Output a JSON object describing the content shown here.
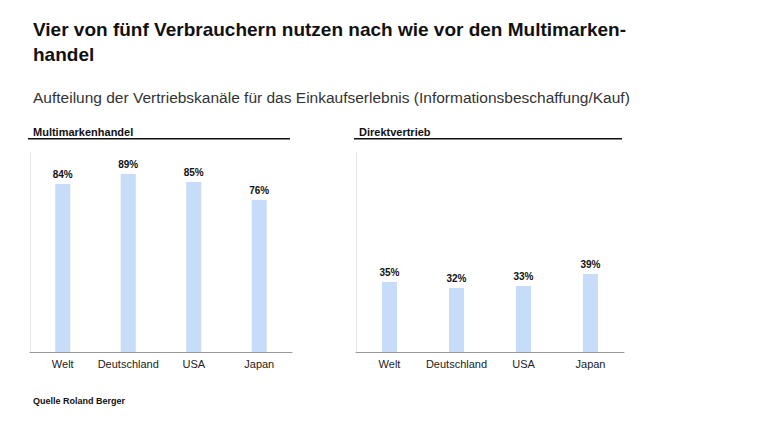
{
  "title": "Vier von fünf Verbrauchern nutzen nach wie vor den Multimarken-\nhandel",
  "subtitle": "Aufteilung der Vertriebskanäle für das Einkaufserlebnis (Informationsbeschaffung/Kauf)",
  "source_label": "Quelle",
  "source": "Roland Berger",
  "chart_data": [
    {
      "type": "bar",
      "title": "Multimarkenhandel",
      "categories": [
        "Welt",
        "Deutschland",
        "USA",
        "Japan"
      ],
      "values": [
        84,
        89,
        85,
        76
      ],
      "value_labels": [
        "84%",
        "89%",
        "85%",
        "76%"
      ],
      "color": "#c6dcf8",
      "ylim": [
        0,
        100
      ],
      "grid": false,
      "data_labels": true,
      "tick_labels": "x"
    },
    {
      "type": "bar",
      "title": "Direktvertrieb",
      "categories": [
        "Welt",
        "Deutschland",
        "USA",
        "Japan"
      ],
      "values": [
        35,
        32,
        33,
        39
      ],
      "value_labels": [
        "35%",
        "32%",
        "33%",
        "39%"
      ],
      "color": "#c6dcf8",
      "ylim": [
        0,
        100
      ],
      "grid": false,
      "data_labels": true,
      "tick_labels": "x"
    }
  ]
}
